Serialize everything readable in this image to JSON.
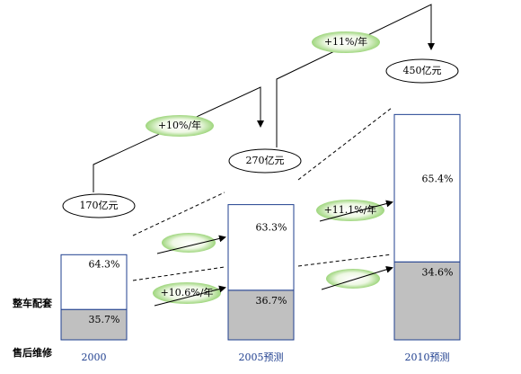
{
  "chart_data": {
    "type": "bar",
    "categories": [
      "2000",
      "2005预测",
      "2010预测"
    ],
    "totals": [
      170,
      270,
      450
    ],
    "total_labels": [
      "170亿元",
      "270亿元",
      "450亿元"
    ],
    "series": [
      {
        "name": "售后维修",
        "color": "#c0c0c0",
        "values": [
          35.7,
          36.7,
          34.6
        ],
        "value_labels": [
          "35.7%",
          "36.7%",
          "34.6%"
        ]
      },
      {
        "name": "整车配套",
        "color": "#ffffff",
        "values": [
          64.3,
          63.3,
          65.4
        ],
        "value_labels": [
          "64.3%",
          "63.3%",
          "65.4%"
        ]
      }
    ],
    "annotations": [
      "+10%/年",
      "+11%/年",
      "+10.6%/年",
      "+11.1%/年"
    ]
  }
}
